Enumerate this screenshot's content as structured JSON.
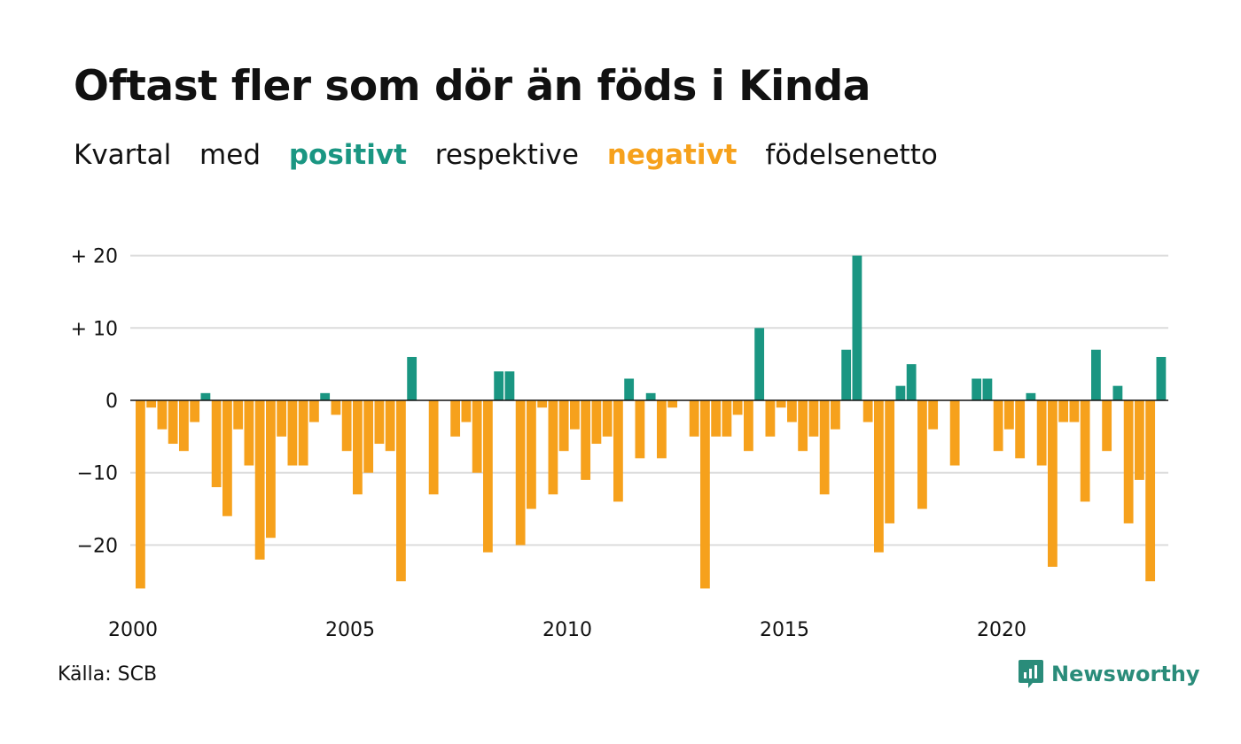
{
  "title": "Oftast fler som dör än föds i Kinda",
  "subtitle": {
    "w1": "Kvartal",
    "w2": "med",
    "positive": "positivt",
    "w3": "respektive",
    "negative": "negativt",
    "w4": "födelsenetto"
  },
  "source": "Källa: SCB",
  "brand": {
    "name": "Newsworthy",
    "icon": "newsworthy-logo-icon"
  },
  "colors": {
    "positive": "#1a9682",
    "negative": "#f6a11c",
    "grid": "#dcdcdc",
    "axis": "#111111"
  },
  "chart_data": {
    "type": "bar",
    "start_year": 2000,
    "ylim": [
      -27,
      21
    ],
    "yticks": [
      {
        "value": 20,
        "label": "+ 20"
      },
      {
        "value": 10,
        "label": "+ 10"
      },
      {
        "value": 0,
        "label": "0"
      },
      {
        "value": -10,
        "label": "−10"
      },
      {
        "value": -20,
        "label": "−20"
      }
    ],
    "xticks": [
      "2000",
      "2005",
      "2010",
      "2015",
      "2020"
    ],
    "grid": true,
    "values": [
      -26,
      -1,
      -4,
      -6,
      -7,
      -3,
      1,
      -12,
      -16,
      -4,
      -9,
      -22,
      -19,
      -5,
      -9,
      -9,
      -3,
      1,
      -2,
      -7,
      -13,
      -10,
      -6,
      -7,
      -25,
      6,
      0,
      -13,
      0,
      -5,
      -3,
      -10,
      -21,
      4,
      4,
      -20,
      -15,
      -1,
      -13,
      -7,
      -4,
      -11,
      -6,
      -5,
      -14,
      3,
      -8,
      1,
      -8,
      -1,
      0,
      -5,
      -26,
      -5,
      -5,
      -2,
      -7,
      10,
      -5,
      -1,
      -3,
      -7,
      -5,
      -13,
      -4,
      7,
      20,
      -3,
      -21,
      -17,
      2,
      5,
      -15,
      -4,
      0,
      -9,
      0,
      3,
      3,
      -7,
      -4,
      -8,
      1,
      -9,
      -23,
      -3,
      -3,
      -14,
      7,
      -7,
      2,
      -17,
      -11,
      -25,
      6
    ]
  }
}
